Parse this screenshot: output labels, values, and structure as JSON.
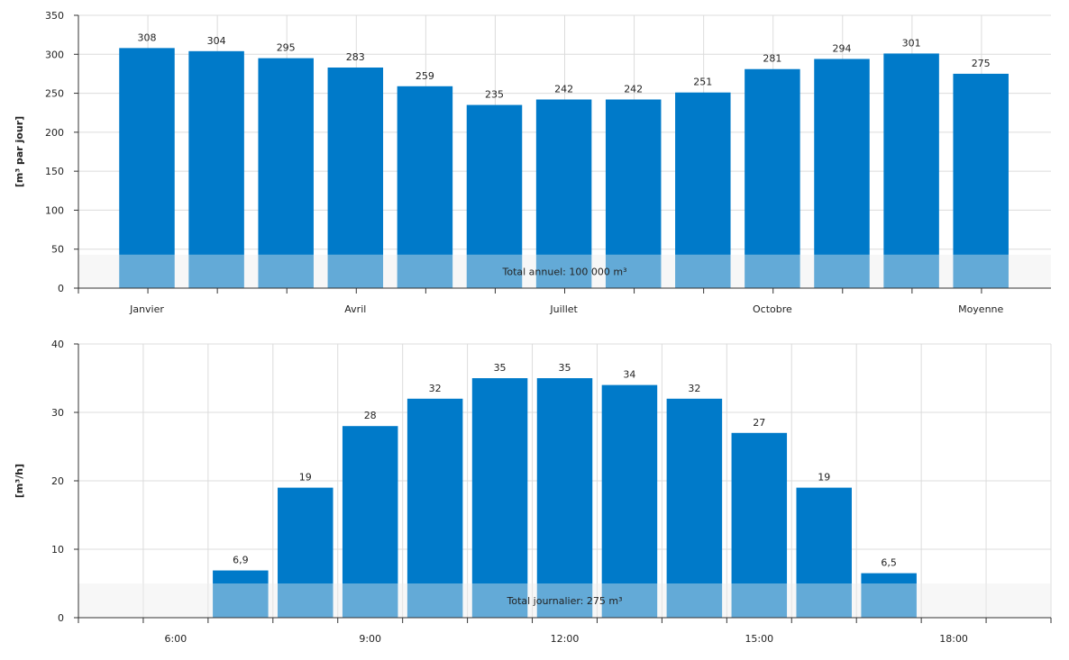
{
  "colors": {
    "bar": "#007ac9",
    "bar_overlay": "#6eaed6",
    "band": "#ececec",
    "grid": "#dcdcdc",
    "axis": "#333333"
  },
  "chart_data": [
    {
      "type": "bar",
      "ylabel": "[m³ par jour]",
      "ylim": [
        0,
        350
      ],
      "yticks": [
        0,
        50,
        100,
        150,
        200,
        250,
        300,
        350
      ],
      "grid": true,
      "categories": [
        "1",
        "2",
        "3",
        "4",
        "5",
        "6",
        "7",
        "8",
        "9",
        "10",
        "11",
        "12",
        "Moyenne"
      ],
      "xtick_labels": [
        "Janvier",
        "",
        "",
        "Avril",
        "",
        "",
        "Juillet",
        "",
        "",
        "Octobre",
        "",
        "",
        "Moyenne"
      ],
      "values": [
        308,
        304,
        295,
        283,
        259,
        235,
        242,
        242,
        251,
        281,
        294,
        301,
        275
      ],
      "value_labels": [
        "308",
        "304",
        "295",
        "283",
        "259",
        "235",
        "242",
        "242",
        "251",
        "281",
        "294",
        "301",
        "275"
      ],
      "band_value": 43,
      "band_label": "Total annuel: 100 000 m³"
    },
    {
      "type": "bar",
      "ylabel": "[m³/h]",
      "ylim": [
        0,
        40
      ],
      "yticks": [
        0,
        10,
        20,
        30,
        40
      ],
      "grid": true,
      "x_hours": [
        5,
        6,
        7,
        8,
        9,
        10,
        11,
        12,
        13,
        14,
        15,
        16,
        17,
        18,
        19
      ],
      "xtick_labels": [
        "",
        "6:00",
        "",
        "",
        "9:00",
        "",
        "",
        "12:00",
        "",
        "",
        "15:00",
        "",
        "",
        "18:00",
        ""
      ],
      "values": [
        null,
        null,
        6.9,
        19,
        28,
        32,
        35,
        35,
        34,
        32,
        27,
        19,
        6.5,
        null,
        null
      ],
      "value_labels": [
        "",
        "",
        "6,9",
        "19",
        "28",
        "32",
        "35",
        "35",
        "34",
        "32",
        "27",
        "19",
        "6,5",
        "",
        ""
      ],
      "band_value": 5,
      "band_label": "Total journalier: 275 m³"
    }
  ]
}
